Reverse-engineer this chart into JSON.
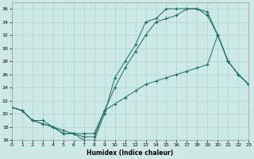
{
  "xlabel": "Humidex (Indice chaleur)",
  "xlim": [
    0,
    23
  ],
  "ylim": [
    16,
    37
  ],
  "xticks": [
    0,
    1,
    2,
    3,
    4,
    5,
    6,
    7,
    8,
    9,
    10,
    11,
    12,
    13,
    14,
    15,
    16,
    17,
    18,
    19,
    20,
    21,
    22,
    23
  ],
  "yticks": [
    16,
    18,
    20,
    22,
    24,
    26,
    28,
    30,
    32,
    34,
    36
  ],
  "bg_color": "#cce9e5",
  "line_color": "#1a6b60",
  "grid_color": "#aed4cf",
  "line1_x": [
    0,
    1,
    2,
    3,
    4,
    5,
    6,
    7,
    8,
    9,
    10,
    11,
    12,
    13,
    14,
    15,
    16,
    17,
    18,
    19,
    20,
    21,
    22,
    23
  ],
  "line1_y": [
    21,
    20.5,
    19,
    19,
    18,
    17,
    17,
    16,
    16,
    20,
    25.5,
    28,
    30.5,
    34,
    34.5,
    36,
    36,
    36,
    36,
    35,
    32,
    28,
    26,
    24.5
  ],
  "line2_x": [
    0,
    1,
    2,
    3,
    4,
    5,
    6,
    7,
    8,
    9,
    10,
    11,
    12,
    13,
    14,
    15,
    16,
    17,
    18,
    19,
    20,
    21,
    22,
    23
  ],
  "line2_y": [
    21,
    20.5,
    19,
    18.5,
    18,
    17,
    17,
    16.5,
    16.5,
    20.5,
    24,
    27,
    29.5,
    32,
    34,
    34.5,
    35,
    36,
    36,
    35.5,
    32,
    28,
    26,
    24.5
  ],
  "line3_x": [
    0,
    1,
    2,
    3,
    4,
    5,
    6,
    7,
    8,
    9,
    10,
    11,
    12,
    13,
    14,
    15,
    16,
    17,
    18,
    19,
    20,
    21,
    22,
    23
  ],
  "line3_y": [
    21,
    20.5,
    19,
    18.5,
    18,
    17.5,
    17,
    17,
    17,
    20.5,
    21.5,
    22.5,
    23.5,
    24.5,
    25,
    25.5,
    26,
    26.5,
    27,
    27.5,
    32,
    28,
    26,
    24.5
  ]
}
